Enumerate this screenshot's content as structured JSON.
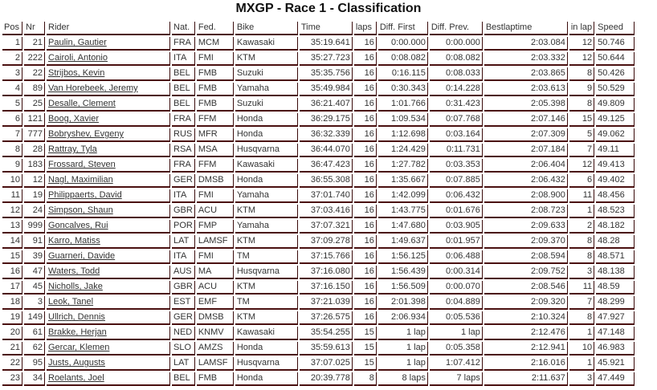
{
  "title": "MXGP - Race 1 - Classification",
  "columns": [
    "Pos",
    "Nr",
    "Rider",
    "Nat.",
    "Fed.",
    "Bike",
    "Time",
    "laps",
    "Diff. First",
    "Diff. Prev.",
    "Bestlaptime",
    "in lap",
    "Speed"
  ],
  "rows": [
    [
      "1",
      "21",
      "Paulin, Gautier",
      "FRA",
      "MCM",
      "Kawasaki",
      "35:19.641",
      "16",
      "0:00.000",
      "0:00.000",
      "2:03.084",
      "12",
      "50.746"
    ],
    [
      "2",
      "222",
      "Cairoli, Antonio",
      "ITA",
      "FMI",
      "KTM",
      "35:27.723",
      "16",
      "0:08.082",
      "0:08.082",
      "2:03.332",
      "12",
      "50.644"
    ],
    [
      "3",
      "22",
      "Strijbos, Kevin",
      "BEL",
      "FMB",
      "Suzuki",
      "35:35.756",
      "16",
      "0:16.115",
      "0:08.033",
      "2:03.865",
      "8",
      "50.426"
    ],
    [
      "4",
      "89",
      "Van Horebeek, Jeremy",
      "BEL",
      "FMB",
      "Yamaha",
      "35:49.984",
      "16",
      "0:30.343",
      "0:14.228",
      "2:03.613",
      "9",
      "50.529"
    ],
    [
      "5",
      "25",
      "Desalle, Clement",
      "BEL",
      "FMB",
      "Suzuki",
      "36:21.407",
      "16",
      "1:01.766",
      "0:31.423",
      "2:05.398",
      "8",
      "49.809"
    ],
    [
      "6",
      "121",
      "Boog, Xavier",
      "FRA",
      "FFM",
      "Honda",
      "36:29.175",
      "16",
      "1:09.534",
      "0:07.768",
      "2:07.146",
      "15",
      "49.125"
    ],
    [
      "7",
      "777",
      "Bobryshev, Evgeny",
      "RUS",
      "MFR",
      "Honda",
      "36:32.339",
      "16",
      "1:12.698",
      "0:03.164",
      "2:07.309",
      "5",
      "49.062"
    ],
    [
      "8",
      "28",
      "Rattray, Tyla",
      "RSA",
      "MSA",
      "Husqvarna",
      "36:44.070",
      "16",
      "1:24.429",
      "0:11.731",
      "2:07.184",
      "7",
      "49.11"
    ],
    [
      "9",
      "183",
      "Frossard, Steven",
      "FRA",
      "FFM",
      "Kawasaki",
      "36:47.423",
      "16",
      "1:27.782",
      "0:03.353",
      "2:06.404",
      "12",
      "49.413"
    ],
    [
      "10",
      "12",
      "Nagl, Maximilian",
      "GER",
      "DMSB",
      "Honda",
      "36:55.308",
      "16",
      "1:35.667",
      "0:07.885",
      "2:06.432",
      "6",
      "49.402"
    ],
    [
      "11",
      "19",
      "Philippaerts, David",
      "ITA",
      "FMI",
      "Yamaha",
      "37:01.740",
      "16",
      "1:42.099",
      "0:06.432",
      "2:08.900",
      "11",
      "48.456"
    ],
    [
      "12",
      "24",
      "Simpson, Shaun",
      "GBR",
      "ACU",
      "KTM",
      "37:03.416",
      "16",
      "1:43.775",
      "0:01.676",
      "2:08.723",
      "1",
      "48.523"
    ],
    [
      "13",
      "999",
      "Goncalves, Rui",
      "POR",
      "FMP",
      "Yamaha",
      "37:07.321",
      "16",
      "1:47.680",
      "0:03.905",
      "2:09.633",
      "2",
      "48.182"
    ],
    [
      "14",
      "91",
      "Karro, Matiss",
      "LAT",
      "LAMSF",
      "KTM",
      "37:09.278",
      "16",
      "1:49.637",
      "0:01.957",
      "2:09.370",
      "8",
      "48.28"
    ],
    [
      "15",
      "39",
      "Guarneri, Davide",
      "ITA",
      "FMI",
      "TM",
      "37:15.766",
      "16",
      "1:56.125",
      "0:06.488",
      "2:08.594",
      "8",
      "48.571"
    ],
    [
      "16",
      "47",
      "Waters, Todd",
      "AUS",
      "MA",
      "Husqvarna",
      "37:16.080",
      "16",
      "1:56.439",
      "0:00.314",
      "2:09.752",
      "3",
      "48.138"
    ],
    [
      "17",
      "45",
      "Nicholls, Jake",
      "GBR",
      "ACU",
      "KTM",
      "37:16.150",
      "16",
      "1:56.509",
      "0:00.070",
      "2:08.546",
      "11",
      "48.59"
    ],
    [
      "18",
      "3",
      "Leok, Tanel",
      "EST",
      "EMF",
      "TM",
      "37:21.039",
      "16",
      "2:01.398",
      "0:04.889",
      "2:09.320",
      "7",
      "48.299"
    ],
    [
      "19",
      "149",
      "Ullrich, Dennis",
      "GER",
      "DMSB",
      "KTM",
      "37:26.575",
      "16",
      "2:06.934",
      "0:05.536",
      "2:10.324",
      "8",
      "47.927"
    ],
    [
      "20",
      "61",
      "Brakke, Herjan",
      "NED",
      "KNMV",
      "Kawasaki",
      "35:54.255",
      "15",
      "1 lap",
      "1 lap",
      "2:12.476",
      "1",
      "47.148"
    ],
    [
      "21",
      "62",
      "Gercar, Klemen",
      "SLO",
      "AMZS",
      "Honda",
      "35:59.613",
      "15",
      "1 lap",
      "0:05.358",
      "2:12.941",
      "10",
      "46.983"
    ],
    [
      "22",
      "95",
      "Justs, Augusts",
      "LAT",
      "LAMSF",
      "Husqvarna",
      "37:07.025",
      "15",
      "1 lap",
      "1:07.412",
      "2:16.016",
      "1",
      "45.921"
    ],
    [
      "23",
      "34",
      "Roelants, Joel",
      "BEL",
      "FMB",
      "Honda",
      "20:39.778",
      "8",
      "8 laps",
      "7 laps",
      "2:11.637",
      "3",
      "47.449"
    ]
  ]
}
